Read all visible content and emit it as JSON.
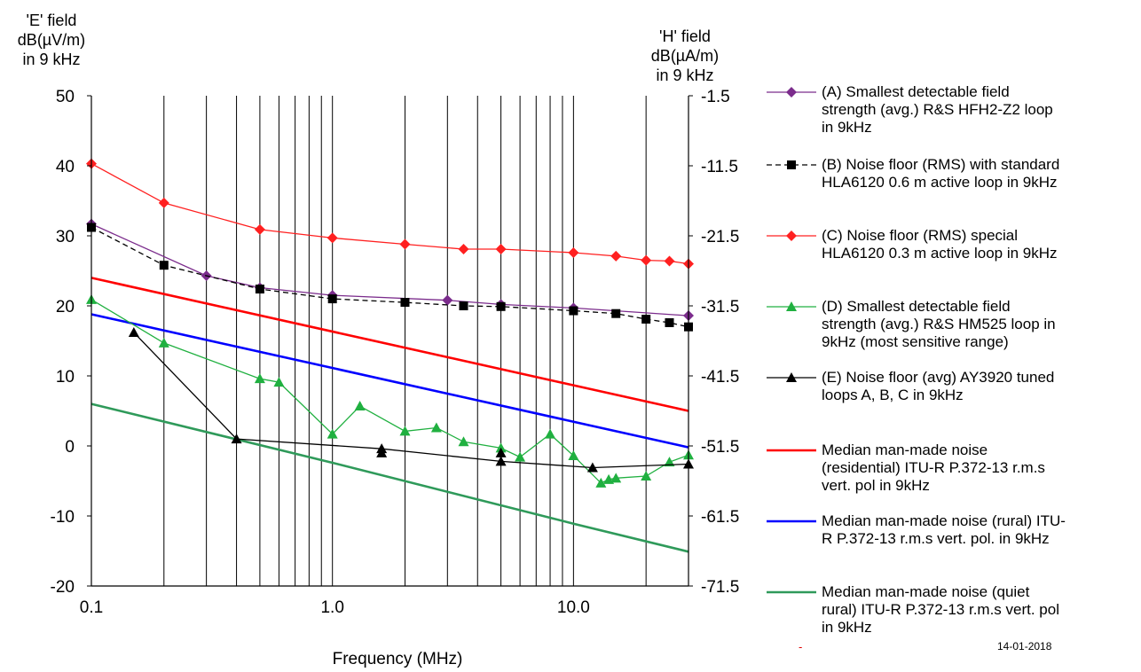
{
  "chart_data": {
    "type": "line",
    "title": "",
    "xlabel": "Frequency (MHz)",
    "x_scale": "log",
    "xlim": [
      0.1,
      30
    ],
    "x_ticks": [
      "0.1",
      "1.0",
      "10.0"
    ],
    "ylabel_left": [
      "'E' field",
      "dB(µV/m)",
      "in 9 kHz"
    ],
    "ylabel_right": [
      "'H' field",
      "dB(µA/m)",
      "in 9 kHz"
    ],
    "ylim": [
      -20,
      50
    ],
    "y_ticks_left": [
      "50",
      "40",
      "30",
      "20",
      "10",
      "0",
      "-10",
      "-20"
    ],
    "y_ticks_right": [
      "-1.5",
      "-11.5",
      "-21.5",
      "-31.5",
      "-41.5",
      "-51.5",
      "-61.5",
      "-71.5"
    ],
    "grid": "vertical lines at log decade subdivisions",
    "legend_position": "right",
    "series": [
      {
        "name": "(A) Smallest detectable field strength (avg.) R&S HFH2-Z2 loop in 9kHz",
        "color": "#7b2c8c",
        "marker": "diamond",
        "dash": false,
        "x": [
          0.1,
          0.3,
          0.5,
          1.0,
          3.0,
          5.0,
          10.0,
          30.0
        ],
        "y": [
          31.7,
          24.3,
          22.6,
          21.5,
          20.8,
          20.2,
          19.7,
          18.6
        ]
      },
      {
        "name": "(B) Noise floor (RMS) with standard HLA6120 0.6 m active loop in 9kHz",
        "color": "#000000",
        "marker": "square",
        "dash": true,
        "x": [
          0.1,
          0.2,
          0.5,
          1.0,
          2.0,
          3.5,
          5.0,
          10.0,
          15.0,
          20.0,
          25.0,
          30.0
        ],
        "y": [
          31.2,
          25.8,
          22.4,
          21.0,
          20.5,
          20.0,
          19.9,
          19.3,
          18.9,
          18.1,
          17.6,
          17.0
        ]
      },
      {
        "name": "(C) Noise floor (RMS) special HLA6120 0.3 m  active loop in 9kHz",
        "color": "#ff2020",
        "marker": "diamond",
        "dash": false,
        "x": [
          0.1,
          0.2,
          0.5,
          1.0,
          2.0,
          3.5,
          5.0,
          10.0,
          15.0,
          20.0,
          25.0,
          30.0
        ],
        "y": [
          40.3,
          34.7,
          30.9,
          29.7,
          28.8,
          28.1,
          28.1,
          27.6,
          27.1,
          26.5,
          26.4,
          26.0
        ]
      },
      {
        "name": "(D) Smallest detectable field strength (avg.) R&S HM525 loop in 9kHz (most sensitive range)",
        "color": "#20b040",
        "marker": "triangle",
        "dash": false,
        "x": [
          0.1,
          0.2,
          0.5,
          0.6,
          1.0,
          1.3,
          2.0,
          2.7,
          3.5,
          5.0,
          6.0,
          8.0,
          10.0,
          13.0,
          14.0,
          15.0,
          20.0,
          25.0,
          30.0
        ],
        "y": [
          20.9,
          14.7,
          9.6,
          9.1,
          1.7,
          5.7,
          2.1,
          2.6,
          0.6,
          -0.3,
          -1.6,
          1.7,
          -1.4,
          -5.3,
          -4.8,
          -4.6,
          -4.3,
          -2.3,
          -1.3
        ]
      },
      {
        "name": "(E) Noise floor (avg) AY3920 tuned loops A, B, C in 9kHz",
        "color": "#000000",
        "marker": "triangle",
        "dash": false,
        "x": [
          0.15,
          0.4,
          1.6,
          5.0,
          12.0,
          30.0
        ],
        "y": [
          16.2,
          1.0,
          -0.4,
          -2.2,
          -3.1,
          -2.6
        ],
        "extra_markers_x": [
          1.6,
          5.0
        ],
        "extra_markers_y": [
          -1.0,
          -1.0
        ]
      },
      {
        "name": "Median man-made noise (residential) ITU-R P.372-13 r.m.s vert. pol in 9kHz",
        "color": "#ff0000",
        "marker": "none",
        "dash": false,
        "x": [
          0.1,
          30.0
        ],
        "y": [
          24.0,
          5.0
        ]
      },
      {
        "name": "Median man-made noise  (rural) ITU-R P.372-13 r.m.s vert. pol. in 9kHz",
        "color": "#0000ff",
        "marker": "none",
        "dash": false,
        "x": [
          0.1,
          30.0
        ],
        "y": [
          18.8,
          -0.2
        ]
      },
      {
        "name": "Median man-made noise  (quiet rural) ITU-R P.372-13 r.m.s vert. pol in 9kHz",
        "color": "#2f9a5a",
        "marker": "none",
        "dash": false,
        "x": [
          0.1,
          1.0,
          10.0,
          30.0
        ],
        "y": [
          6.0,
          -2.4,
          -11.1,
          -15.1
        ]
      }
    ]
  },
  "legend": {
    "items": [
      {
        "lines": [
          "(A) Smallest detectable field",
          "strength (avg.) R&S HFH2-Z2 loop",
          "in 9kHz"
        ]
      },
      {
        "lines": [
          "(B) Noise floor (RMS) with standard",
          "HLA6120 0.6 m active loop in 9kHz"
        ]
      },
      {
        "lines": [
          "(C) Noise floor (RMS) special",
          "HLA6120 0.3 m  active loop in 9kHz"
        ]
      },
      {
        "lines": [
          "(D) Smallest detectable field",
          "strength (avg.) R&S HM525 loop in",
          "9kHz (most sensitive range)"
        ]
      },
      {
        "lines": [
          "(E) Noise floor (avg) AY3920 tuned",
          "loops A, B, C in 9kHz"
        ]
      },
      {
        "lines": [
          "Median man-made noise",
          "(residential) ITU-R P.372-13 r.m.s",
          "vert. pol in 9kHz"
        ]
      },
      {
        "lines": [
          "Median man-made noise  (rural) ITU-",
          "R P.372-13 r.m.s vert. pol. in 9kHz"
        ]
      },
      {
        "lines": [
          "Median man-made noise  (quiet",
          "rural) ITU-R P.372-13 r.m.s vert. pol",
          "in 9kHz"
        ]
      }
    ]
  },
  "footer": {
    "date": "14-01-2018",
    "dash": "-"
  }
}
